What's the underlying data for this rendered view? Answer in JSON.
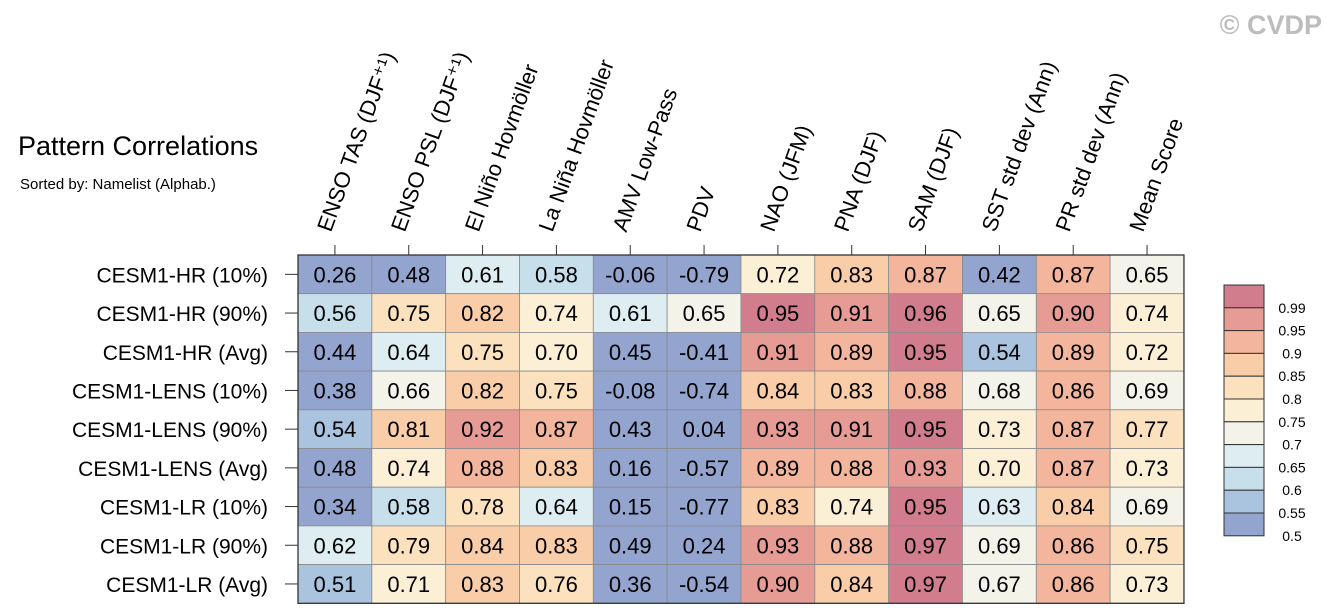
{
  "chart_data": {
    "type": "heatmap",
    "title": "Pattern Correlations",
    "subtitle": "Sorted by: Namelist (Alphab.)",
    "watermark": "© CVDP",
    "columns": [
      "ENSO TAS (DJF⁺¹)",
      "ENSO PSL (DJF⁺¹)",
      "El Niño Hovmöller",
      "La Niña Hovmöller",
      "AMV Low-Pass",
      "PDV",
      "NAO (JFM)",
      "PNA (DJF)",
      "SAM (DJF)",
      "SST std dev (Ann)",
      "PR std dev (Ann)",
      "Mean Score"
    ],
    "rows": [
      "CESM1-HR (10%)",
      "CESM1-HR (90%)",
      "CESM1-HR (Avg)",
      "CESM1-LENS (10%)",
      "CESM1-LENS (90%)",
      "CESM1-LENS (Avg)",
      "CESM1-LR (10%)",
      "CESM1-LR (90%)",
      "CESM1-LR (Avg)"
    ],
    "values": [
      [
        "0.26",
        "0.48",
        "0.61",
        "0.58",
        "-0.06",
        "-0.79",
        "0.72",
        "0.83",
        "0.87",
        "0.42",
        "0.87",
        "0.65"
      ],
      [
        "0.56",
        "0.75",
        "0.82",
        "0.74",
        "0.61",
        "0.65",
        "0.95",
        "0.91",
        "0.96",
        "0.65",
        "0.90",
        "0.74"
      ],
      [
        "0.44",
        "0.64",
        "0.75",
        "0.70",
        "0.45",
        "-0.41",
        "0.91",
        "0.89",
        "0.95",
        "0.54",
        "0.89",
        "0.72"
      ],
      [
        "0.38",
        "0.66",
        "0.82",
        "0.75",
        "-0.08",
        "-0.74",
        "0.84",
        "0.83",
        "0.88",
        "0.68",
        "0.86",
        "0.69"
      ],
      [
        "0.54",
        "0.81",
        "0.92",
        "0.87",
        "0.43",
        "0.04",
        "0.93",
        "0.91",
        "0.95",
        "0.73",
        "0.87",
        "0.77"
      ],
      [
        "0.48",
        "0.74",
        "0.88",
        "0.83",
        "0.16",
        "-0.57",
        "0.89",
        "0.88",
        "0.93",
        "0.70",
        "0.87",
        "0.73"
      ],
      [
        "0.34",
        "0.58",
        "0.78",
        "0.64",
        "0.15",
        "-0.77",
        "0.83",
        "0.74",
        "0.95",
        "0.63",
        "0.84",
        "0.69"
      ],
      [
        "0.62",
        "0.79",
        "0.84",
        "0.83",
        "0.49",
        "0.24",
        "0.93",
        "0.88",
        "0.97",
        "0.69",
        "0.86",
        "0.75"
      ],
      [
        "0.51",
        "0.71",
        "0.83",
        "0.76",
        "0.36",
        "-0.54",
        "0.90",
        "0.84",
        "0.97",
        "0.67",
        "0.86",
        "0.73"
      ]
    ],
    "colorbar": {
      "levels": [
        "0.99",
        "0.95",
        "0.9",
        "0.85",
        "0.8",
        "0.75",
        "0.7",
        "0.65",
        "0.6",
        "0.55",
        "0.5"
      ],
      "colors_top_to_bottom": [
        "#d27d8e",
        "#e69b94",
        "#f3b59c",
        "#f8cda8",
        "#fbe1bd",
        "#fbf0d6",
        "#f3f3ea",
        "#deedf2",
        "#c7dfeb",
        "#aac4df",
        "#93a4cf"
      ]
    }
  }
}
